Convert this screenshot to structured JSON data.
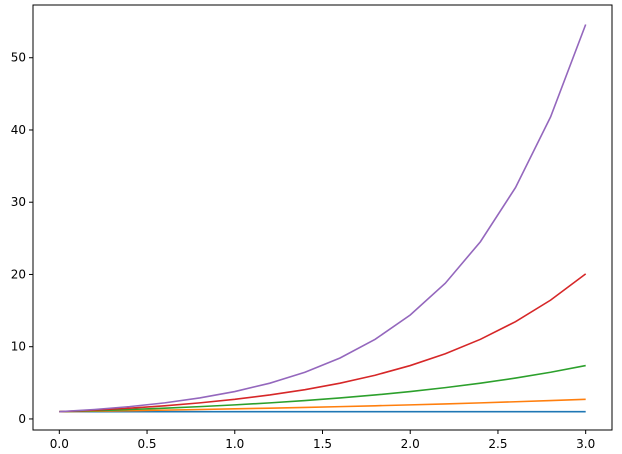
{
  "chart_data": {
    "type": "line",
    "x": [
      0,
      0.2,
      0.4,
      0.6,
      0.8,
      1.0,
      1.2,
      1.4,
      1.6,
      1.8,
      2.0,
      2.2,
      2.4,
      2.6,
      2.8,
      3.0
    ],
    "series": [
      {
        "color": "#1f77b4",
        "values": [
          1,
          1,
          1,
          1,
          1,
          1,
          1,
          1,
          1,
          1,
          1,
          1,
          1,
          1,
          1,
          1
        ]
      },
      {
        "color": "#ff7f0e",
        "values": [
          1,
          1.069,
          1.143,
          1.221,
          1.306,
          1.396,
          1.492,
          1.595,
          1.705,
          1.822,
          1.948,
          2.082,
          2.226,
          2.379,
          2.543,
          2.718
        ]
      },
      {
        "color": "#2ca02c",
        "values": [
          1,
          1.143,
          1.306,
          1.492,
          1.705,
          1.948,
          2.226,
          2.543,
          2.906,
          3.32,
          3.794,
          4.334,
          4.953,
          5.659,
          6.466,
          7.389
        ]
      },
      {
        "color": "#d62728",
        "values": [
          1,
          1.221,
          1.492,
          1.822,
          2.226,
          2.718,
          3.32,
          4.055,
          4.953,
          6.05,
          7.389,
          9.025,
          11.023,
          13.464,
          16.445,
          20.086
        ]
      },
      {
        "color": "#9467bd",
        "values": [
          1,
          1.306,
          1.705,
          2.226,
          2.906,
          3.794,
          4.953,
          6.466,
          8.441,
          11.023,
          14.392,
          18.787,
          24.533,
          32.028,
          41.81,
          54.598
        ]
      }
    ],
    "xlim": [
      -0.15,
      3.15
    ],
    "ylim": [
      -1.53,
      57.3
    ],
    "xticks": [
      {
        "value": 0,
        "label": "0.0"
      },
      0.5,
      {
        "value": 1,
        "label": "1.0"
      },
      1.5,
      {
        "value": 2,
        "label": "2.0"
      },
      2.5,
      {
        "value": 3,
        "label": "3.0"
      }
    ],
    "yticks": [
      0,
      10,
      20,
      30,
      40,
      50
    ],
    "grid": false
  }
}
